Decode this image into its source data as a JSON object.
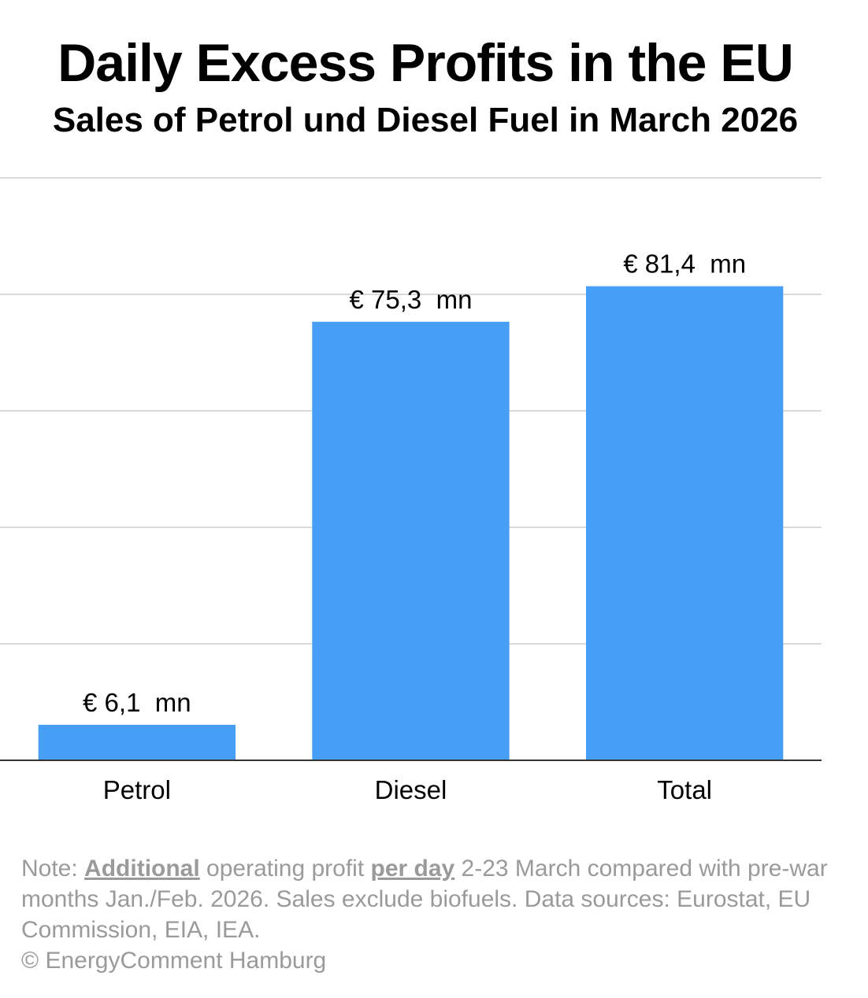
{
  "chart_data": {
    "type": "bar",
    "title": "Daily Excess Profits in the EU",
    "subtitle": "Sales of Petrol und Diesel Fuel in March 2026",
    "categories": [
      "Petrol",
      "Diesel",
      "Total"
    ],
    "values": [
      6.1,
      75.3,
      81.4
    ],
    "data_labels": [
      "€ 6,1  mn",
      "€ 75,3  mn",
      "€ 81,4  mn"
    ],
    "ylim": [
      0,
      100
    ],
    "gridlines": [
      0,
      20,
      40,
      60,
      80,
      100
    ],
    "grid": true,
    "xlabel": "",
    "ylabel": "",
    "bar_color": "#479ef5",
    "grid_color": "#d9d9d9",
    "axis_color": "#333333"
  },
  "note": {
    "prefix": "Note: ",
    "emph1": "Additional",
    "mid1": " operating profit ",
    "emph2": "per day",
    "mid2": " 2-23 March compared with pre-war months Jan./Feb. 2026. Sales exclude biofuels. Data sources: Eurostat, EU Commission, EIA, IEA.",
    "copyright": "© EnergyComment Hamburg"
  }
}
